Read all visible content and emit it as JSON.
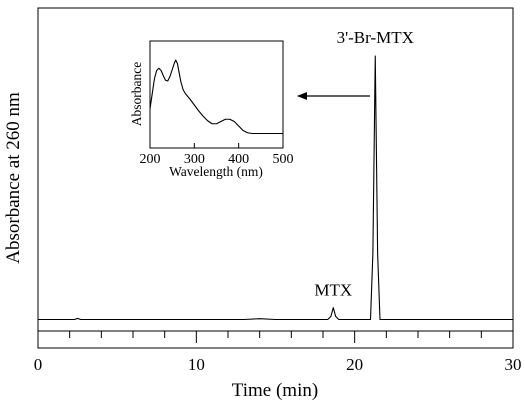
{
  "chart_data": [
    {
      "type": "line",
      "xlabel": "Time (min)",
      "ylabel": "Absorbance at 260 nm",
      "xlim": [
        0,
        30
      ],
      "xticks": [
        0,
        10,
        20,
        30
      ],
      "minor_xtick_step": 2,
      "y_ticks_shown": false,
      "grid": false,
      "series": [
        {
          "x": [
            0,
            2.3,
            2.5,
            2.7,
            3.0,
            10.0,
            13.0,
            14.0,
            15.0,
            18.3,
            18.5,
            18.65,
            18.8,
            19.0,
            21.0,
            21.15,
            21.3,
            21.45,
            21.6,
            22.0,
            26.0,
            30.0
          ],
          "y": [
            0,
            0,
            0.004,
            0,
            0,
            0,
            0,
            0.003,
            0,
            0,
            0.012,
            0.045,
            0.012,
            0,
            0,
            0.25,
            1.0,
            0.25,
            0,
            0,
            0,
            0
          ]
        }
      ],
      "annotations": [
        {
          "text": "MTX",
          "x": 18.65
        },
        {
          "text": "3'-Br-MTX",
          "x": 21.3
        }
      ]
    },
    {
      "type": "line",
      "role": "inset",
      "xlabel": "Wavelength (nm)",
      "ylabel": "Absorbance",
      "xlim": [
        200,
        500
      ],
      "xticks": [
        200,
        300,
        400,
        500
      ],
      "y_ticks_shown": false,
      "series": [
        {
          "x": [
            200,
            205,
            210,
            215,
            220,
            225,
            230,
            235,
            240,
            245,
            250,
            255,
            258,
            262,
            266,
            270,
            275,
            280,
            290,
            300,
            310,
            320,
            330,
            340,
            350,
            360,
            370,
            380,
            390,
            400,
            410,
            420,
            430,
            440,
            460,
            480,
            500
          ],
          "y": [
            0.35,
            0.55,
            0.75,
            0.86,
            0.89,
            0.86,
            0.79,
            0.73,
            0.72,
            0.78,
            0.87,
            0.96,
            1.0,
            0.95,
            0.82,
            0.7,
            0.6,
            0.55,
            0.48,
            0.4,
            0.32,
            0.25,
            0.19,
            0.15,
            0.15,
            0.18,
            0.21,
            0.21,
            0.18,
            0.12,
            0.06,
            0.03,
            0.02,
            0.02,
            0.02,
            0.02,
            0.02
          ]
        }
      ]
    }
  ]
}
